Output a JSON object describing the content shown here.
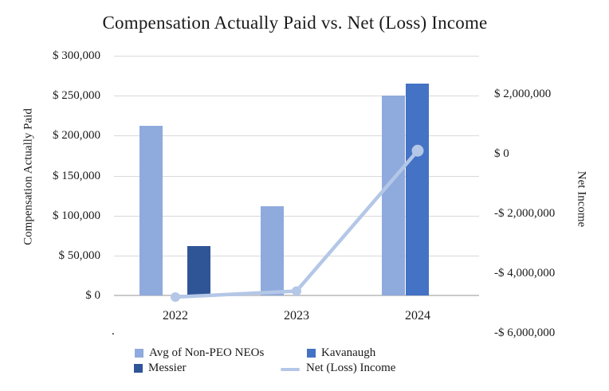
{
  "title": "Compensation Actually Paid vs. Net (Loss) Income",
  "annotations": {
    "stray_dot": "."
  },
  "chart_data": {
    "type": "combo-bar-line",
    "title": "Compensation Actually Paid vs. Net (Loss) Income",
    "categories": [
      "2022",
      "2023",
      "2024"
    ],
    "bar_series": [
      {
        "name": "Avg of Non-PEO NEOs",
        "color": "#8FAADC",
        "axis": "left",
        "values": [
          212000,
          112000,
          250000
        ]
      },
      {
        "name": "Kavanaugh",
        "color": "#4472C4",
        "axis": "left",
        "values": [
          null,
          null,
          265000
        ]
      },
      {
        "name": "Messier",
        "color": "#2F5597",
        "axis": "left",
        "values": [
          62000,
          null,
          null
        ]
      }
    ],
    "line_series": {
      "name": "Net (Loss) Income",
      "color": "#B4C7E7",
      "axis": "right",
      "values": [
        -4800000,
        -4600000,
        100000
      ]
    },
    "left_axis": {
      "title": "Compensation Actually Paid",
      "range": [
        0,
        300000
      ],
      "ticks": [
        {
          "label": "$ 300,000",
          "value": 300000
        },
        {
          "label": "$ 250,000",
          "value": 250000
        },
        {
          "label": "$ 200,000",
          "value": 200000
        },
        {
          "label": "$ 150,000",
          "value": 150000
        },
        {
          "label": "$ 100,000",
          "value": 100000
        },
        {
          "label": "$ 50,000",
          "value": 50000
        },
        {
          "label": "$ 0",
          "value": 0
        }
      ]
    },
    "right_axis": {
      "title": "Net Income",
      "ticks": [
        {
          "label": "$ 2,000,000",
          "value": 2000000
        },
        {
          "label": "$ 0",
          "value": 0
        },
        {
          "label": "-$ 2,000,000",
          "value": -2000000
        },
        {
          "label": "-$ 4,000,000",
          "value": -4000000
        },
        {
          "label": "-$ 6,000,000",
          "value": -6000000
        }
      ]
    },
    "x_axis": {
      "labels": [
        "2022",
        "2023",
        "2024"
      ]
    },
    "legend": {
      "position": "bottom",
      "items": [
        {
          "label": "Avg of Non-PEO NEOs",
          "swatch": "square",
          "color": "#8FAADC"
        },
        {
          "label": "Kavanaugh",
          "swatch": "square",
          "color": "#4472C4"
        },
        {
          "label": "Messier",
          "swatch": "square",
          "color": "#2F5597"
        },
        {
          "label": "Net (Loss) Income",
          "swatch": "line",
          "color": "#B4C7E7"
        }
      ]
    },
    "style": {
      "gridline_color": "#D9D9D9",
      "axis_line_color": "#C9C9C9",
      "grid": true,
      "background": "#FFFFFF"
    }
  }
}
